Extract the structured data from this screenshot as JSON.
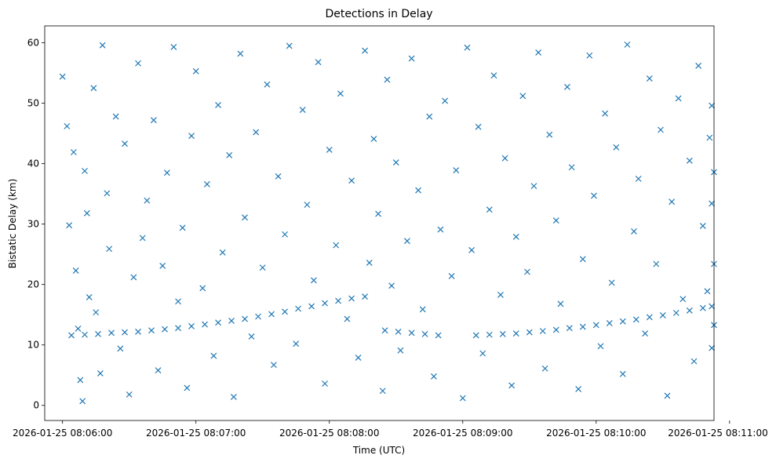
{
  "chart_data": {
    "type": "scatter",
    "title": "Detections in Delay",
    "xlabel": "Time (UTC)",
    "ylabel": "Bistatic Delay (km)",
    "x_unit": "time",
    "xlim": [
      "2026-01-25 08:05:52",
      "2026-01-25 08:10:53"
    ],
    "ylim": [
      -2.5,
      62.8
    ],
    "xticks": [
      "2026-01-25 08:06:00",
      "2026-01-25 08:07:00",
      "2026-01-25 08:08:00",
      "2026-01-25 08:09:00",
      "2026-01-25 08:10:00",
      "2026-01-25 08:11:00"
    ],
    "yticks": [
      "0",
      "10",
      "20",
      "30",
      "40",
      "50",
      "60"
    ],
    "marker": "x",
    "color": "#1f77b4",
    "grid": false,
    "legend": "none",
    "series": [
      {
        "points": [
          [
            "2026-01-25 08:06:04",
            11.6
          ],
          [
            "2026-01-25 08:06:10",
            11.7
          ],
          [
            "2026-01-25 08:06:16",
            11.8
          ],
          [
            "2026-01-25 08:06:22",
            12.0
          ],
          [
            "2026-01-25 08:06:28",
            12.1
          ],
          [
            "2026-01-25 08:06:34",
            12.2
          ],
          [
            "2026-01-25 08:06:40",
            12.4
          ],
          [
            "2026-01-25 08:06:46",
            12.6
          ],
          [
            "2026-01-25 08:06:52",
            12.8
          ],
          [
            "2026-01-25 08:06:58",
            13.1
          ],
          [
            "2026-01-25 08:07:04",
            13.4
          ],
          [
            "2026-01-25 08:07:10",
            13.7
          ],
          [
            "2026-01-25 08:07:16",
            14.0
          ],
          [
            "2026-01-25 08:07:22",
            14.3
          ],
          [
            "2026-01-25 08:07:28",
            14.7
          ],
          [
            "2026-01-25 08:07:34",
            15.1
          ],
          [
            "2026-01-25 08:07:40",
            15.5
          ],
          [
            "2026-01-25 08:07:46",
            16.0
          ],
          [
            "2026-01-25 08:07:52",
            16.4
          ],
          [
            "2026-01-25 08:07:58",
            16.9
          ],
          [
            "2026-01-25 08:08:04",
            17.3
          ],
          [
            "2026-01-25 08:08:10",
            17.7
          ],
          [
            "2026-01-25 08:08:16",
            18.0
          ],
          [
            "2026-01-25 08:08:25",
            12.4
          ],
          [
            "2026-01-25 08:08:31",
            12.2
          ],
          [
            "2026-01-25 08:08:37",
            12.0
          ],
          [
            "2026-01-25 08:08:43",
            11.8
          ],
          [
            "2026-01-25 08:08:49",
            11.6
          ],
          [
            "2026-01-25 08:09:06",
            11.6
          ],
          [
            "2026-01-25 08:09:12",
            11.7
          ],
          [
            "2026-01-25 08:09:18",
            11.8
          ],
          [
            "2026-01-25 08:09:24",
            11.9
          ],
          [
            "2026-01-25 08:09:30",
            12.1
          ],
          [
            "2026-01-25 08:09:36",
            12.3
          ],
          [
            "2026-01-25 08:09:42",
            12.5
          ],
          [
            "2026-01-25 08:09:48",
            12.8
          ],
          [
            "2026-01-25 08:09:54",
            13.0
          ],
          [
            "2026-01-25 08:10:00",
            13.3
          ],
          [
            "2026-01-25 08:10:06",
            13.6
          ],
          [
            "2026-01-25 08:10:12",
            13.9
          ],
          [
            "2026-01-25 08:10:18",
            14.2
          ],
          [
            "2026-01-25 08:10:24",
            14.6
          ],
          [
            "2026-01-25 08:10:30",
            14.9
          ],
          [
            "2026-01-25 08:10:36",
            15.3
          ],
          [
            "2026-01-25 08:10:42",
            15.7
          ],
          [
            "2026-01-25 08:10:48",
            16.1
          ],
          [
            "2026-01-25 08:10:52",
            16.4
          ],
          [
            "2026-01-25 08:06:00",
            54.4
          ],
          [
            "2026-01-25 08:06:02",
            46.2
          ],
          [
            "2026-01-25 08:06:03",
            29.8
          ],
          [
            "2026-01-25 08:06:05",
            41.9
          ],
          [
            "2026-01-25 08:06:06",
            22.3
          ],
          [
            "2026-01-25 08:06:07",
            12.7
          ],
          [
            "2026-01-25 08:06:08",
            4.2
          ],
          [
            "2026-01-25 08:06:09",
            0.7
          ],
          [
            "2026-01-25 08:06:10",
            38.8
          ],
          [
            "2026-01-25 08:06:11",
            31.8
          ],
          [
            "2026-01-25 08:06:12",
            17.9
          ],
          [
            "2026-01-25 08:06:14",
            52.5
          ],
          [
            "2026-01-25 08:06:15",
            15.4
          ],
          [
            "2026-01-25 08:06:17",
            5.3
          ],
          [
            "2026-01-25 08:06:18",
            59.6
          ],
          [
            "2026-01-25 08:06:20",
            35.1
          ],
          [
            "2026-01-25 08:06:21",
            25.9
          ],
          [
            "2026-01-25 08:06:24",
            47.8
          ],
          [
            "2026-01-25 08:06:26",
            9.4
          ],
          [
            "2026-01-25 08:06:28",
            43.3
          ],
          [
            "2026-01-25 08:06:30",
            1.8
          ],
          [
            "2026-01-25 08:06:32",
            21.2
          ],
          [
            "2026-01-25 08:06:34",
            56.6
          ],
          [
            "2026-01-25 08:06:36",
            27.7
          ],
          [
            "2026-01-25 08:06:38",
            33.9
          ],
          [
            "2026-01-25 08:06:41",
            47.2
          ],
          [
            "2026-01-25 08:06:43",
            5.8
          ],
          [
            "2026-01-25 08:06:45",
            23.1
          ],
          [
            "2026-01-25 08:06:47",
            38.5
          ],
          [
            "2026-01-25 08:06:50",
            59.3
          ],
          [
            "2026-01-25 08:06:52",
            17.2
          ],
          [
            "2026-01-25 08:06:54",
            29.4
          ],
          [
            "2026-01-25 08:06:56",
            2.9
          ],
          [
            "2026-01-25 08:06:58",
            44.6
          ],
          [
            "2026-01-25 08:07:00",
            55.3
          ],
          [
            "2026-01-25 08:07:03",
            19.4
          ],
          [
            "2026-01-25 08:07:05",
            36.6
          ],
          [
            "2026-01-25 08:07:08",
            8.2
          ],
          [
            "2026-01-25 08:07:10",
            49.7
          ],
          [
            "2026-01-25 08:07:12",
            25.3
          ],
          [
            "2026-01-25 08:07:15",
            41.4
          ],
          [
            "2026-01-25 08:07:17",
            1.4
          ],
          [
            "2026-01-25 08:07:20",
            58.2
          ],
          [
            "2026-01-25 08:07:22",
            31.1
          ],
          [
            "2026-01-25 08:07:25",
            11.4
          ],
          [
            "2026-01-25 08:07:27",
            45.2
          ],
          [
            "2026-01-25 08:07:30",
            22.8
          ],
          [
            "2026-01-25 08:07:32",
            53.1
          ],
          [
            "2026-01-25 08:07:35",
            6.7
          ],
          [
            "2026-01-25 08:07:37",
            37.9
          ],
          [
            "2026-01-25 08:07:40",
            28.3
          ],
          [
            "2026-01-25 08:07:42",
            59.5
          ],
          [
            "2026-01-25 08:07:45",
            10.2
          ],
          [
            "2026-01-25 08:07:48",
            48.9
          ],
          [
            "2026-01-25 08:07:50",
            33.2
          ],
          [
            "2026-01-25 08:07:53",
            20.7
          ],
          [
            "2026-01-25 08:07:55",
            56.8
          ],
          [
            "2026-01-25 08:07:58",
            3.6
          ],
          [
            "2026-01-25 08:08:00",
            42.3
          ],
          [
            "2026-01-25 08:08:03",
            26.5
          ],
          [
            "2026-01-25 08:08:05",
            51.6
          ],
          [
            "2026-01-25 08:08:08",
            14.3
          ],
          [
            "2026-01-25 08:08:10",
            37.2
          ],
          [
            "2026-01-25 08:08:13",
            7.9
          ],
          [
            "2026-01-25 08:08:16",
            58.7
          ],
          [
            "2026-01-25 08:08:18",
            23.6
          ],
          [
            "2026-01-25 08:08:20",
            44.1
          ],
          [
            "2026-01-25 08:08:22",
            31.7
          ],
          [
            "2026-01-25 08:08:24",
            2.4
          ],
          [
            "2026-01-25 08:08:26",
            53.9
          ],
          [
            "2026-01-25 08:08:28",
            19.8
          ],
          [
            "2026-01-25 08:08:30",
            40.2
          ],
          [
            "2026-01-25 08:08:32",
            9.1
          ],
          [
            "2026-01-25 08:08:35",
            27.2
          ],
          [
            "2026-01-25 08:08:37",
            57.4
          ],
          [
            "2026-01-25 08:08:40",
            35.6
          ],
          [
            "2026-01-25 08:08:42",
            15.9
          ],
          [
            "2026-01-25 08:08:45",
            47.8
          ],
          [
            "2026-01-25 08:08:47",
            4.8
          ],
          [
            "2026-01-25 08:08:50",
            29.1
          ],
          [
            "2026-01-25 08:08:52",
            50.4
          ],
          [
            "2026-01-25 08:08:55",
            21.4
          ],
          [
            "2026-01-25 08:08:57",
            38.9
          ],
          [
            "2026-01-25 08:09:00",
            1.2
          ],
          [
            "2026-01-25 08:09:02",
            59.2
          ],
          [
            "2026-01-25 08:09:04",
            25.7
          ],
          [
            "2026-01-25 08:09:07",
            46.1
          ],
          [
            "2026-01-25 08:09:09",
            8.6
          ],
          [
            "2026-01-25 08:09:12",
            32.4
          ],
          [
            "2026-01-25 08:09:14",
            54.6
          ],
          [
            "2026-01-25 08:09:17",
            18.3
          ],
          [
            "2026-01-25 08:09:19",
            40.9
          ],
          [
            "2026-01-25 08:09:22",
            3.3
          ],
          [
            "2026-01-25 08:09:24",
            27.9
          ],
          [
            "2026-01-25 08:09:27",
            51.2
          ],
          [
            "2026-01-25 08:09:29",
            22.1
          ],
          [
            "2026-01-25 08:09:32",
            36.3
          ],
          [
            "2026-01-25 08:09:34",
            58.4
          ],
          [
            "2026-01-25 08:09:37",
            6.1
          ],
          [
            "2026-01-25 08:09:39",
            44.8
          ],
          [
            "2026-01-25 08:09:42",
            30.6
          ],
          [
            "2026-01-25 08:09:44",
            16.8
          ],
          [
            "2026-01-25 08:09:47",
            52.7
          ],
          [
            "2026-01-25 08:09:49",
            39.4
          ],
          [
            "2026-01-25 08:09:52",
            2.7
          ],
          [
            "2026-01-25 08:09:54",
            24.2
          ],
          [
            "2026-01-25 08:09:57",
            57.9
          ],
          [
            "2026-01-25 08:09:59",
            34.7
          ],
          [
            "2026-01-25 08:10:02",
            9.8
          ],
          [
            "2026-01-25 08:10:04",
            48.3
          ],
          [
            "2026-01-25 08:10:07",
            20.3
          ],
          [
            "2026-01-25 08:10:09",
            42.7
          ],
          [
            "2026-01-25 08:10:12",
            5.2
          ],
          [
            "2026-01-25 08:10:14",
            59.7
          ],
          [
            "2026-01-25 08:10:17",
            28.8
          ],
          [
            "2026-01-25 08:10:19",
            37.5
          ],
          [
            "2026-01-25 08:10:22",
            11.9
          ],
          [
            "2026-01-25 08:10:24",
            54.1
          ],
          [
            "2026-01-25 08:10:27",
            23.4
          ],
          [
            "2026-01-25 08:10:29",
            45.6
          ],
          [
            "2026-01-25 08:10:32",
            1.6
          ],
          [
            "2026-01-25 08:10:34",
            33.7
          ],
          [
            "2026-01-25 08:10:37",
            50.8
          ],
          [
            "2026-01-25 08:10:39",
            17.6
          ],
          [
            "2026-01-25 08:10:42",
            40.5
          ],
          [
            "2026-01-25 08:10:44",
            7.3
          ],
          [
            "2026-01-25 08:10:46",
            56.2
          ],
          [
            "2026-01-25 08:10:48",
            29.7
          ],
          [
            "2026-01-25 08:10:50",
            18.9
          ],
          [
            "2026-01-25 08:10:51",
            44.3
          ],
          [
            "2026-01-25 08:10:52",
            9.5
          ],
          [
            "2026-01-25 08:10:52",
            33.4
          ],
          [
            "2026-01-25 08:10:52",
            49.6
          ],
          [
            "2026-01-25 08:10:53",
            23.4
          ],
          [
            "2026-01-25 08:10:53",
            13.3
          ],
          [
            "2026-01-25 08:10:53",
            38.6
          ]
        ]
      }
    ]
  }
}
